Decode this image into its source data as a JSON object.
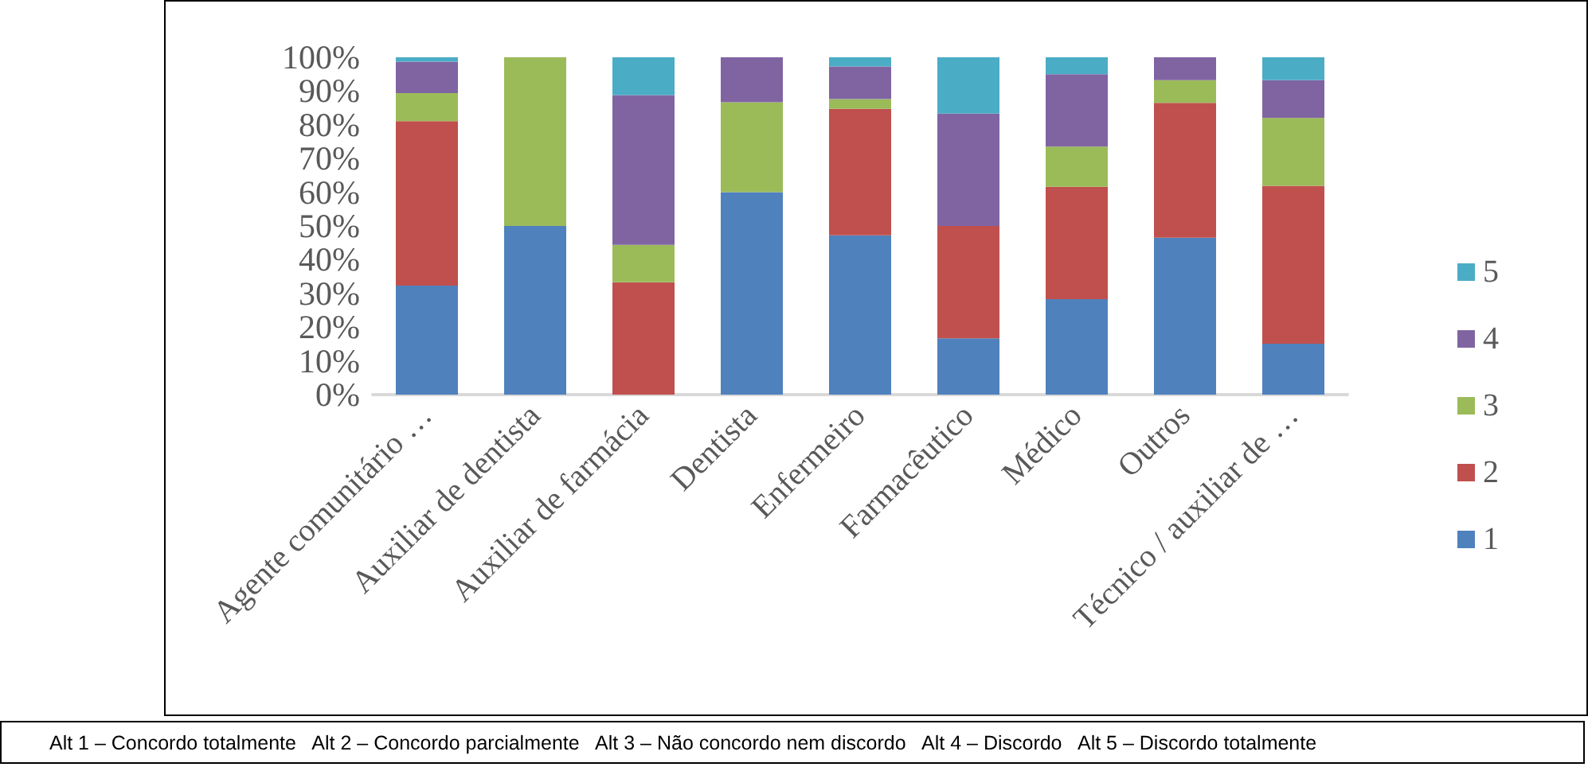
{
  "chart_data": {
    "type": "bar",
    "stacked": true,
    "categories": [
      "Agente comunitário …",
      "Auxiliar de dentista",
      "Auxiliar de farmácia",
      "Dentista",
      "Enfermeiro",
      "Farmacêutico",
      "Médico",
      "Outros",
      "Técnico / auxiliar de …"
    ],
    "series": [
      {
        "name": "1",
        "color": "#4f81bd",
        "values": [
          32.3,
          50,
          0,
          60,
          47.2,
          16.7,
          28.3,
          46.5,
          15.1
        ]
      },
      {
        "name": "2",
        "color": "#c0504d",
        "values": [
          48.8,
          0,
          33.3,
          0,
          37.5,
          33.3,
          33.3,
          40,
          46.8
        ]
      },
      {
        "name": "3",
        "color": "#9bbb59",
        "values": [
          8.3,
          50,
          11.1,
          26.7,
          2.9,
          0,
          11.9,
          6.7,
          20.1
        ]
      },
      {
        "name": "4",
        "color": "#8064a2",
        "values": [
          9.3,
          0,
          44.4,
          13.3,
          9.7,
          33.3,
          21.5,
          6.8,
          11.2
        ]
      },
      {
        "name": "5",
        "color": "#4bacc6",
        "values": [
          1.3,
          0,
          11.2,
          0,
          2.7,
          16.7,
          5,
          0,
          6.8
        ]
      }
    ],
    "ylim": [
      0,
      100
    ],
    "yticks": [
      {
        "value": 0,
        "label": "0%"
      },
      {
        "value": 10,
        "label": "10%"
      },
      {
        "value": 20,
        "label": "20%"
      },
      {
        "value": 30,
        "label": "30%"
      },
      {
        "value": 40,
        "label": "40%"
      },
      {
        "value": 50,
        "label": "50%"
      },
      {
        "value": 60,
        "label": "60%"
      },
      {
        "value": 70,
        "label": "70%"
      },
      {
        "value": 80,
        "label": "80%"
      },
      {
        "value": 90,
        "label": "90%"
      },
      {
        "value": 100,
        "label": "100%"
      }
    ],
    "grid": false,
    "legend": "right",
    "annotations": [
      "Alt 1 – Concordo totalmente   Alt 2 – Concordo parcialmente   Alt 3 – Não concordo nem discordo   Alt 4 – Discordo   Alt 5 – Discordo totalmente"
    ]
  }
}
